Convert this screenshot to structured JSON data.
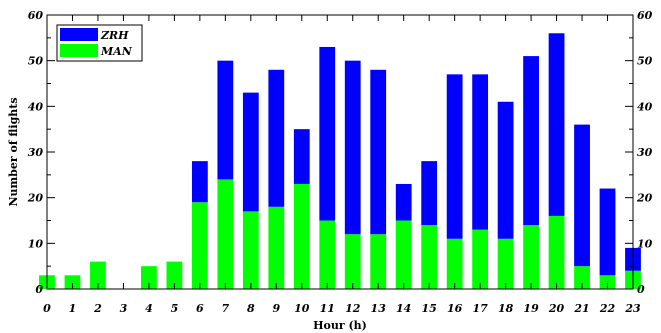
{
  "chart_data": {
    "type": "bar",
    "stacked": true,
    "title": "",
    "xlabel": "Hour (h)",
    "ylabel": "Number of flights",
    "ylim": [
      0,
      60
    ],
    "xlim": [
      0,
      23
    ],
    "y_ticks": [
      "0",
      "10",
      "20",
      "30",
      "40",
      "50",
      "60"
    ],
    "right_axis_ticks": true,
    "grid": false,
    "legend_position": "top-left",
    "categories": [
      "0",
      "1",
      "2",
      "3",
      "4",
      "5",
      "6",
      "7",
      "8",
      "9",
      "10",
      "11",
      "12",
      "13",
      "14",
      "15",
      "16",
      "17",
      "18",
      "19",
      "20",
      "21",
      "22",
      "23"
    ],
    "series": [
      {
        "name": "MAN",
        "color": "#00ff00",
        "values": [
          3,
          3,
          6,
          0,
          5,
          6,
          19,
          24,
          17,
          18,
          23,
          15,
          12,
          12,
          15,
          14,
          11,
          13,
          11,
          14,
          16,
          5,
          3,
          4
        ]
      },
      {
        "name": "ZRH",
        "color": "#0000ff",
        "values": [
          0,
          0,
          0,
          0,
          0,
          0,
          9,
          26,
          26,
          30,
          12,
          38,
          38,
          36,
          8,
          14,
          36,
          34,
          30,
          37,
          40,
          31,
          19,
          5
        ]
      }
    ],
    "legend_order": [
      "ZRH",
      "MAN"
    ]
  }
}
